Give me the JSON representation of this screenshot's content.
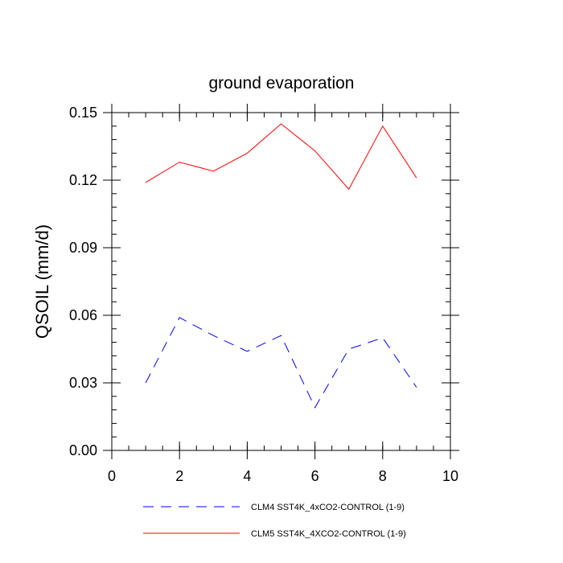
{
  "chart_data": {
    "type": "line",
    "title": "ground evaporation",
    "xlabel": "",
    "ylabel": "QSOIL  (mm/d)",
    "xlim": [
      0,
      10
    ],
    "ylim": [
      0.0,
      0.15
    ],
    "x_ticks": [
      0,
      2,
      4,
      6,
      8,
      10
    ],
    "x_tick_labels": [
      "0",
      "2",
      "4",
      "6",
      "8",
      "10"
    ],
    "y_ticks": [
      0.0,
      0.03,
      0.06,
      0.09,
      0.12,
      0.15
    ],
    "y_tick_labels": [
      "0.00",
      "0.03",
      "0.06",
      "0.09",
      "0.12",
      "0.15"
    ],
    "x_minor_step": 0.5,
    "y_minor_step": 0.006,
    "grid": false,
    "legend_position": "bottom",
    "series": [
      {
        "name": "CLM4 SST4K_4xCO2-CONTROL (1-9)",
        "color": "#0000ff",
        "style": "dashed",
        "x": [
          1,
          2,
          3,
          4,
          5,
          6,
          7,
          8,
          9
        ],
        "y": [
          0.03,
          0.059,
          0.051,
          0.044,
          0.051,
          0.019,
          0.045,
          0.05,
          0.028
        ]
      },
      {
        "name": "CLM5 SST4K_4XCO2-CONTROL (1-9)",
        "color": "#ff0000",
        "style": "solid",
        "x": [
          1,
          2,
          3,
          4,
          5,
          6,
          7,
          8,
          9
        ],
        "y": [
          0.119,
          0.128,
          0.124,
          0.132,
          0.145,
          0.133,
          0.116,
          0.144,
          0.121
        ]
      }
    ]
  }
}
